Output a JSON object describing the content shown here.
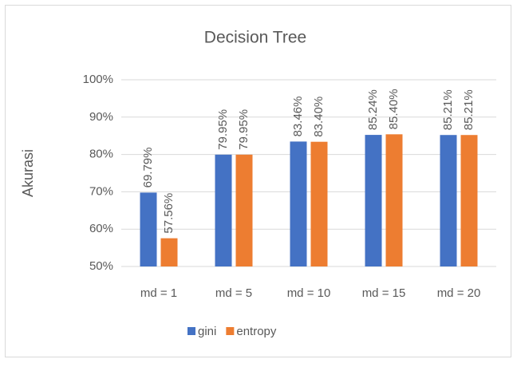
{
  "chart_data": {
    "type": "bar",
    "title": "Decision Tree",
    "y_label": "Akurasi",
    "categories": [
      "md = 1",
      "md = 5",
      "md = 10",
      "md = 15",
      "md = 20"
    ],
    "series": [
      {
        "name": "gini",
        "color": "#4472c4",
        "values": [
          69.79,
          79.95,
          83.46,
          85.24,
          85.21
        ],
        "value_labels": [
          "69.79%",
          "79.95%",
          "83.46%",
          "85.24%",
          "85.21%"
        ]
      },
      {
        "name": "entropy",
        "color": "#ed7d31",
        "values": [
          57.56,
          79.95,
          83.4,
          85.4,
          85.21
        ],
        "value_labels": [
          "57.56%",
          "79.95%",
          "83.40%",
          "85.40%",
          "85.21%"
        ]
      }
    ],
    "ylim": [
      50,
      100
    ],
    "yticks": [
      {
        "value": 50,
        "label": "50%"
      },
      {
        "value": 60,
        "label": "60%"
      },
      {
        "value": 70,
        "label": "70%"
      },
      {
        "value": 80,
        "label": "80%"
      },
      {
        "value": 90,
        "label": "90%"
      },
      {
        "value": 100,
        "label": "100%"
      }
    ],
    "grid": true,
    "legend": "bottom"
  }
}
